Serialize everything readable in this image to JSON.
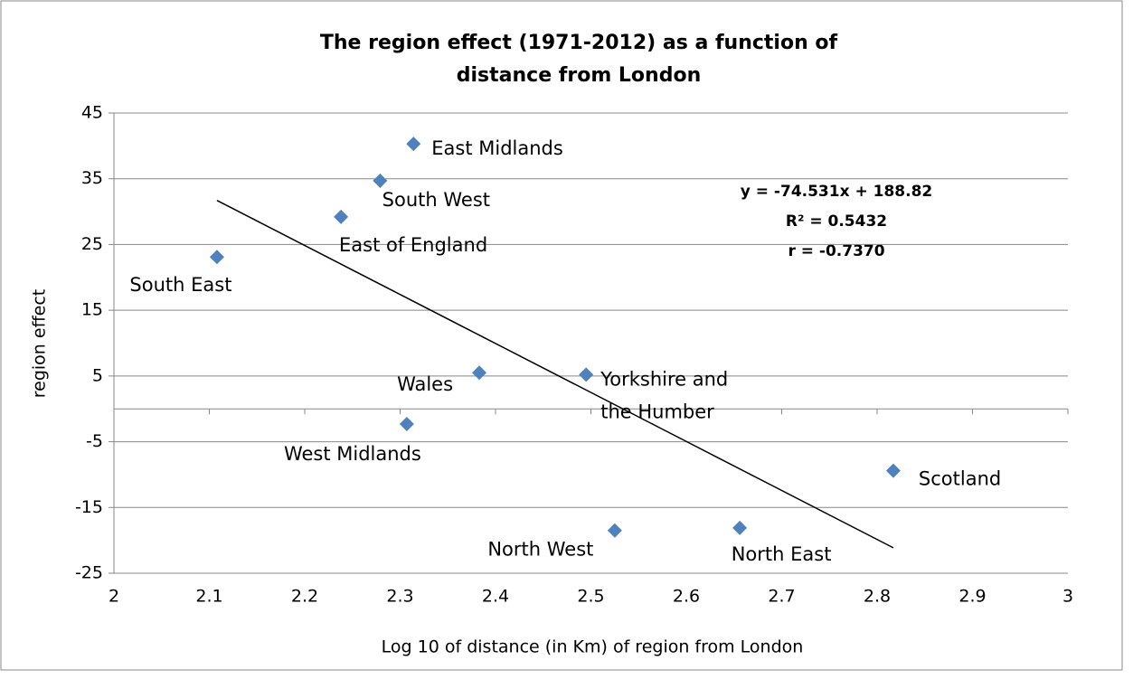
{
  "chart_data": {
    "type": "scatter",
    "title": [
      "The region effect (1971-2012) as a function of",
      "distance from London"
    ],
    "x_label": "Log 10 of distance (in Km) of region from London",
    "y_label": "region effect",
    "series": [
      {
        "color": "#4f81bd",
        "labels": [
          "South East",
          "East of England",
          "South West",
          "East Midlands",
          "West Midlands",
          "Wales",
          "Yorkshire and the Humber",
          "North West",
          "North East",
          "Scotland"
        ],
        "x": [
          2.108,
          2.238,
          2.279,
          2.314,
          2.307,
          2.383,
          2.495,
          2.525,
          2.656,
          2.817
        ],
        "values": [
          23.1,
          29.2,
          34.7,
          40.3,
          -2.3,
          5.5,
          5.2,
          -18.5,
          -18.1,
          -9.4
        ]
      }
    ],
    "trendline": {
      "slope": -74.531,
      "intercept": 188.82,
      "color": "#000000",
      "equation": "y = -74.531x + 188.82",
      "r_squared": "R² = 0.5432",
      "r": "r = -0.7370"
    },
    "xlim": [
      2,
      3
    ],
    "xticks": [
      2,
      2.1,
      2.2,
      2.3,
      2.4,
      2.5,
      2.6,
      2.7,
      2.8,
      2.9,
      3
    ],
    "ylim": [
      -25,
      45
    ],
    "yticks": [
      -25,
      -15,
      -5,
      5,
      15,
      25,
      35,
      45
    ],
    "grid": true
  }
}
